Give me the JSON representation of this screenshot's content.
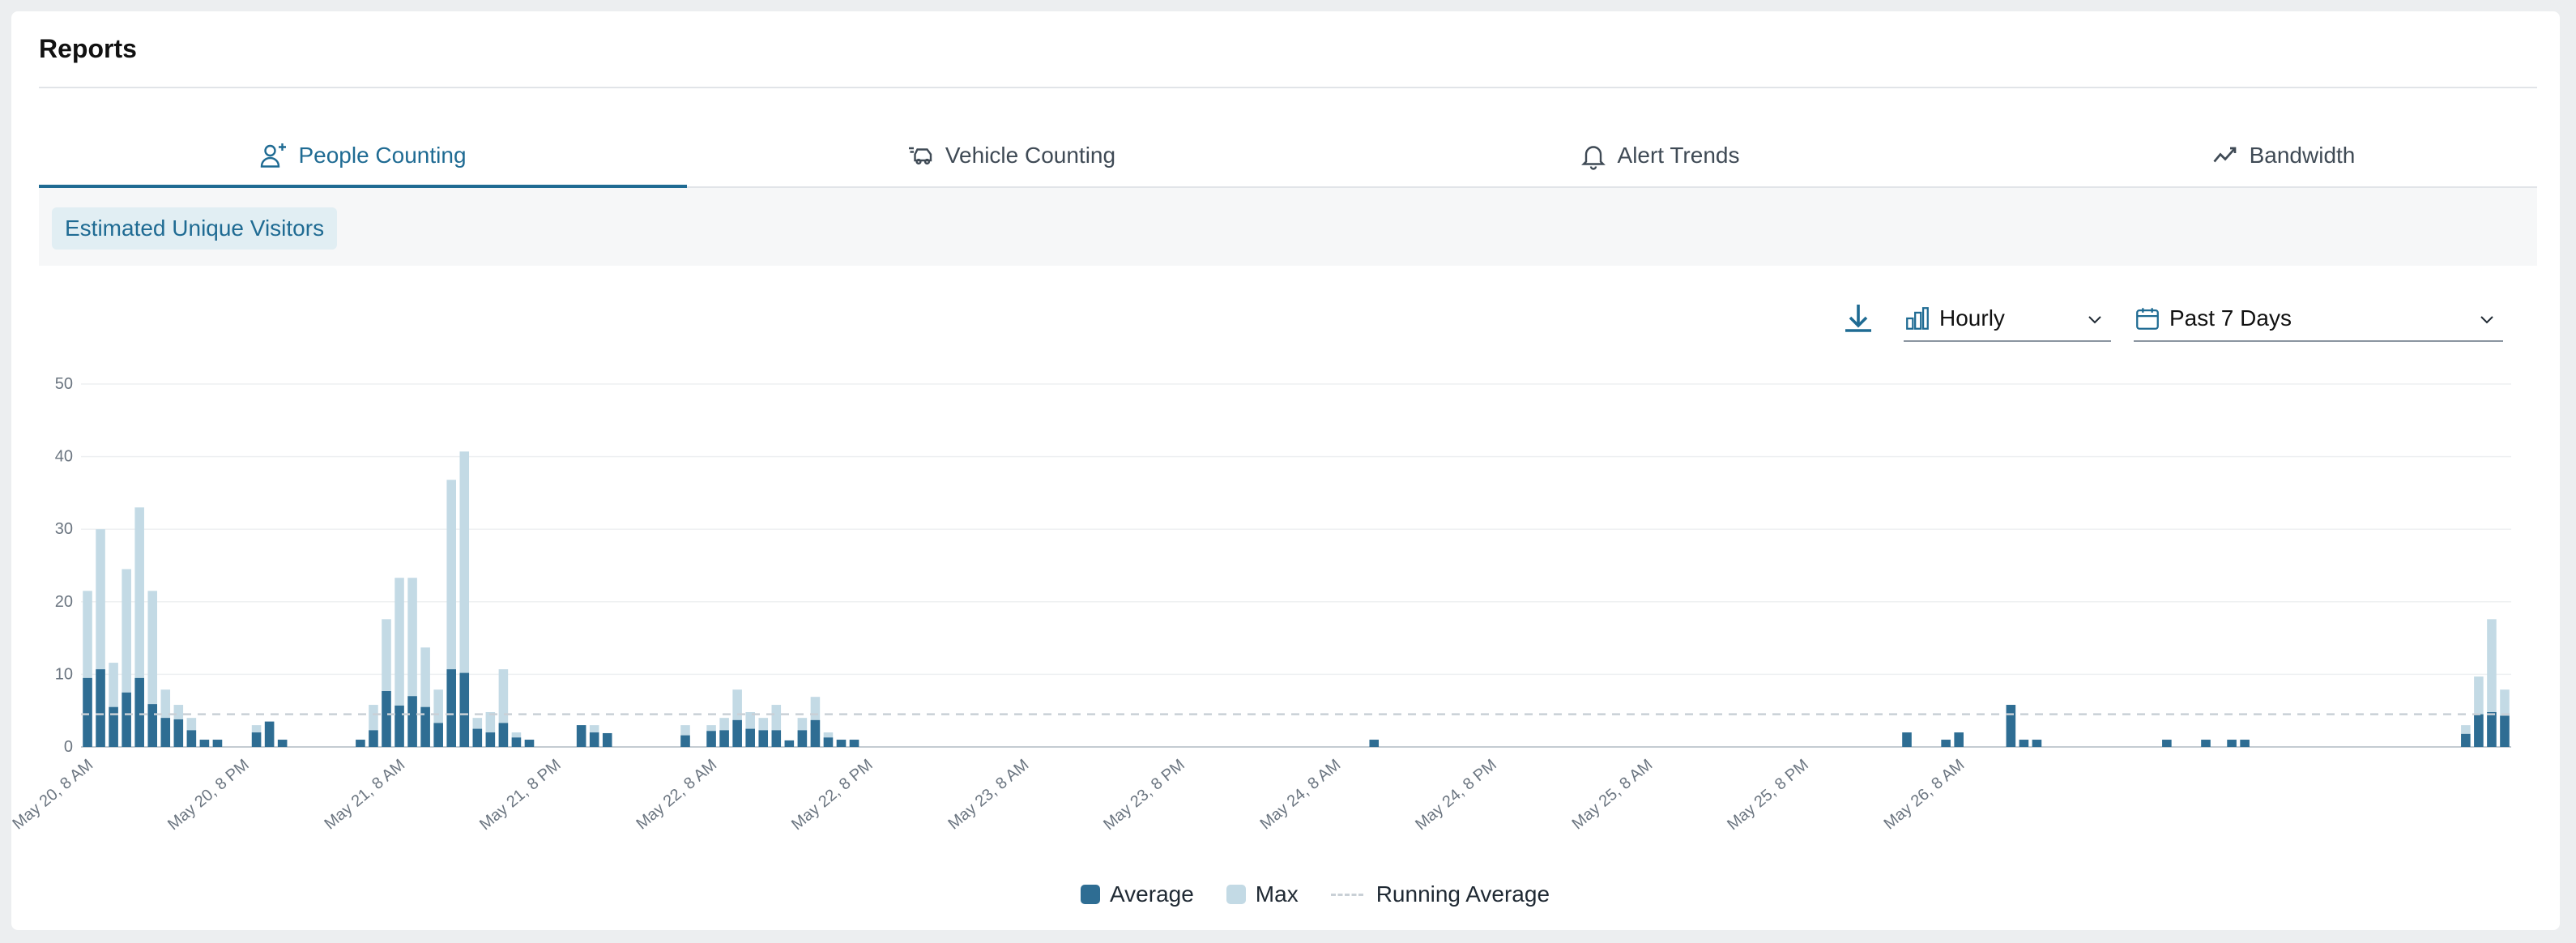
{
  "page": {
    "title": "Reports"
  },
  "tabs": [
    {
      "label": "People Counting",
      "icon": "person-add-icon",
      "active": true
    },
    {
      "label": "Vehicle Counting",
      "icon": "vehicle-icon",
      "active": false
    },
    {
      "label": "Alert Trends",
      "icon": "bell-icon",
      "active": false
    },
    {
      "label": "Bandwidth",
      "icon": "trend-line-icon",
      "active": false
    }
  ],
  "subtabs": {
    "selected": "Estimated Unique Visitors"
  },
  "controls": {
    "download_icon": "download-icon",
    "granularity": {
      "icon": "bar-chart-icon",
      "value": "Hourly"
    },
    "range": {
      "icon": "calendar-icon",
      "value": "Past 7 Days"
    }
  },
  "colors": {
    "accent": "#1f6b93",
    "average": "#2e6d93",
    "max": "#c3dae5",
    "running": "#c9d0d6"
  },
  "chart_data": {
    "type": "bar",
    "stacked_overlay": true,
    "ylim": [
      0,
      50
    ],
    "yticks": [
      0,
      10,
      20,
      30,
      40,
      50
    ],
    "grid": true,
    "x_tick_labels": [
      "May 20, 8 AM",
      "May 20, 8 PM",
      "May 21, 8 AM",
      "May 21, 8 PM",
      "May 22, 8 AM",
      "May 22, 8 PM",
      "May 23, 8 AM",
      "May 23, 8 PM",
      "May 24, 8 AM",
      "May 24, 8 PM",
      "May 25, 8 AM",
      "May 25, 8 PM",
      "May 26, 8 AM"
    ],
    "x_start_hour_offset": 0,
    "legend_position": "bottom-center",
    "legend": [
      {
        "name": "Average",
        "kind": "swatch",
        "color": "#2e6d93"
      },
      {
        "name": "Max",
        "kind": "swatch",
        "color": "#c3dae5"
      },
      {
        "name": "Running Average",
        "kind": "dashed",
        "color": "#c9d0d6"
      }
    ],
    "running_average": 4.5,
    "series": [
      {
        "name": "Average",
        "values": [
          9.5,
          10.7,
          5.5,
          7.5,
          9.5,
          5.9,
          4.0,
          3.8,
          2.3,
          1.0,
          1.0,
          0,
          0,
          2.0,
          3.5,
          1.0,
          0,
          0,
          0,
          0,
          0,
          1.0,
          2.3,
          7.7,
          5.7,
          7.0,
          5.5,
          3.3,
          10.7,
          10.2,
          2.5,
          2.0,
          3.3,
          1.3,
          1.0,
          0,
          0,
          0,
          3.0,
          2.0,
          1.9,
          0,
          0,
          0,
          0,
          0,
          1.6,
          0,
          2.2,
          2.3,
          3.7,
          2.5,
          2.3,
          2.3,
          0.9,
          2.3,
          3.7,
          1.3,
          1.0,
          1.0,
          0,
          0,
          0,
          0,
          0,
          0,
          0,
          0,
          0,
          0,
          0,
          0,
          0,
          0,
          0,
          0,
          0,
          0,
          0,
          0,
          0,
          0,
          0,
          0,
          0,
          0,
          0,
          0,
          0,
          0,
          0,
          0,
          0,
          0,
          0,
          0,
          0,
          0,
          0,
          1.0,
          0,
          0,
          0,
          0,
          0,
          0,
          0,
          0,
          0,
          0,
          0,
          0,
          0,
          0,
          0,
          0,
          0,
          0,
          0,
          0,
          0,
          0,
          0,
          0,
          0,
          0,
          0,
          0,
          0,
          0,
          0,
          0,
          0,
          0,
          0,
          0,
          0,
          0,
          0,
          0,
          2.0,
          0,
          0,
          1.0,
          2.0,
          0,
          0,
          0,
          5.8,
          1.0,
          1.0,
          0,
          0,
          0,
          0,
          0,
          0,
          0,
          0,
          0,
          1.0,
          0,
          0,
          1.0,
          0,
          1.0,
          1.0,
          0,
          0,
          0,
          0,
          0,
          0,
          0,
          0,
          0,
          0,
          0,
          0,
          0,
          0,
          0,
          0,
          1.8,
          4.5,
          4.8,
          4.3
        ]
      },
      {
        "name": "Max",
        "values": [
          21.5,
          30.0,
          11.6,
          24.5,
          33.0,
          21.5,
          7.9,
          5.8,
          4.0,
          1.0,
          1.0,
          0,
          0,
          3.0,
          3.5,
          1.0,
          0,
          0,
          0,
          0,
          0,
          1.0,
          5.8,
          17.6,
          23.3,
          23.3,
          13.7,
          7.9,
          36.8,
          40.7,
          4.0,
          4.8,
          10.7,
          2.0,
          1.0,
          0,
          0,
          0,
          3.0,
          3.0,
          1.9,
          0,
          0,
          0,
          0,
          0,
          3.0,
          0,
          3.0,
          4.0,
          7.9,
          4.8,
          4.0,
          5.8,
          0.9,
          4.0,
          6.9,
          2.0,
          1.0,
          1.0,
          0,
          0,
          0,
          0,
          0,
          0,
          0,
          0,
          0,
          0,
          0,
          0,
          0,
          0,
          0,
          0,
          0,
          0,
          0,
          0,
          0,
          0,
          0,
          0,
          0,
          0,
          0,
          0,
          0,
          0,
          0,
          0,
          0,
          0,
          0,
          0,
          0,
          0,
          0,
          1.0,
          0,
          0,
          0,
          0,
          0,
          0,
          0,
          0,
          0,
          0,
          0,
          0,
          0,
          0,
          0,
          0,
          0,
          0,
          0,
          0,
          0,
          0,
          0,
          0,
          0,
          0,
          0,
          0,
          0,
          0,
          0,
          0,
          0,
          0,
          0,
          0,
          0,
          0,
          0,
          0,
          2.0,
          0,
          0,
          1.0,
          2.0,
          0,
          0,
          0,
          5.8,
          1.0,
          1.0,
          0,
          0,
          0,
          0,
          0,
          0,
          0,
          0,
          0,
          1.0,
          0,
          0,
          1.0,
          0,
          1.0,
          1.0,
          0,
          0,
          0,
          0,
          0,
          0,
          0,
          0,
          0,
          0,
          0,
          0,
          0,
          0,
          0,
          0,
          3.0,
          9.7,
          17.6,
          7.9
        ]
      }
    ]
  }
}
